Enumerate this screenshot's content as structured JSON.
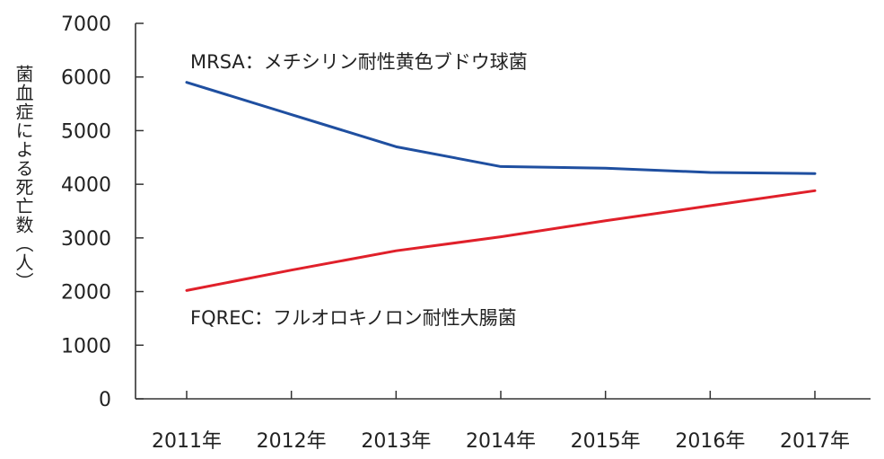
{
  "chart_data": {
    "type": "line",
    "categories": [
      "2011年",
      "2012年",
      "2013年",
      "2014年",
      "2015年",
      "2016年",
      "2017年"
    ],
    "ylabel": "菌血症による死亡数（人）",
    "xlabel": "",
    "ylim": [
      0,
      7000
    ],
    "yticks": [
      0,
      1000,
      2000,
      3000,
      4000,
      5000,
      6000,
      7000
    ],
    "grid": false,
    "series": [
      {
        "name": "MRSA：メチシリン耐性黄色ブドウ球菌",
        "color": "#1f4fa0",
        "values": [
          5900,
          5300,
          4700,
          4330,
          4300,
          4220,
          4200
        ]
      },
      {
        "name": "FQREC：フルオロキノロン耐性大腸菌",
        "color": "#e0202a",
        "values": [
          2020,
          2400,
          2760,
          3020,
          3320,
          3600,
          3880
        ]
      }
    ]
  }
}
